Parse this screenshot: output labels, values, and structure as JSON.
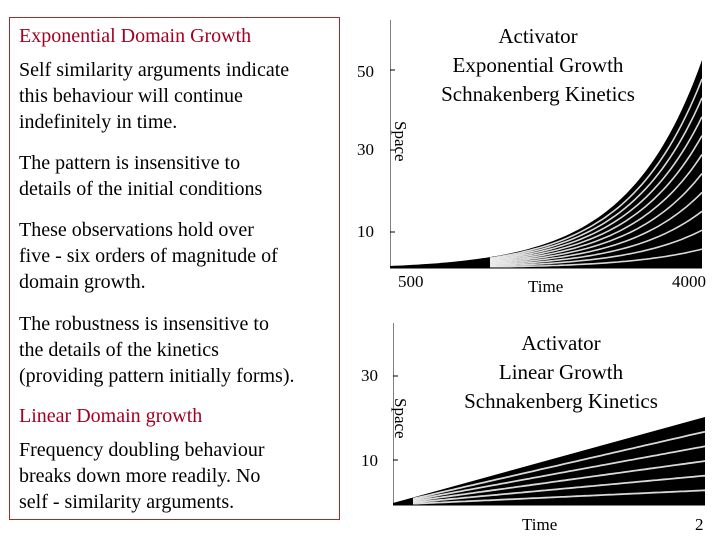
{
  "text_panel": {
    "lines": [
      "Exponential Domain Growth",
      "Self similarity arguments indicate",
      "this behaviour will continue",
      "indefinitely in time.",
      "The pattern is insensitive to",
      "details of the initial conditions",
      "These observations hold over",
      "five - six orders of magnitude of",
      "domain growth.",
      "The robustness is insensitive to",
      "the details of the kinetics",
      "(providing pattern initially forms).",
      "Linear Domain growth",
      "Frequency doubling behaviour",
      "breaks down more readily. No",
      "self - similarity arguments."
    ]
  },
  "top_chart": {
    "title_lines": [
      "Activator",
      "Exponential Growth",
      "Schnakenberg Kinetics"
    ],
    "y_ticks": [
      "50",
      "30",
      "10"
    ],
    "y_label": "Space",
    "x_ticks": [
      "500",
      "4000"
    ],
    "x_label": "Time"
  },
  "bottom_chart": {
    "title_lines": [
      "Activator",
      "Linear Growth",
      "Schnakenberg Kinetics"
    ],
    "y_ticks": [
      "30",
      "10"
    ],
    "y_label": "Space",
    "x_label": "Time",
    "page_number": "2"
  },
  "chart_data": [
    {
      "type": "area",
      "title": "Activator Exponential Growth Schnakenberg Kinetics",
      "xlabel": "Time",
      "ylabel": "Space",
      "x_ticks": [
        500,
        4000
      ],
      "y_ticks": [
        10,
        30,
        50
      ],
      "growth": "exponential"
    },
    {
      "type": "area",
      "title": "Activator Linear Growth Schnakenberg Kinetics",
      "xlabel": "Time",
      "ylabel": "Space",
      "y_ticks": [
        10,
        30
      ],
      "growth": "linear"
    }
  ]
}
